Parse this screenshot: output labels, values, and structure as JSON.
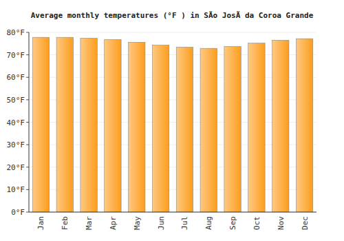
{
  "chart_data": {
    "type": "bar",
    "title": "Average monthly temperatures (°F ) in SÃo JosÃ da Coroa Grande",
    "categories": [
      "Jan",
      "Feb",
      "Mar",
      "Apr",
      "May",
      "Jun",
      "Jul",
      "Aug",
      "Sep",
      "Oct",
      "Nov",
      "Dec"
    ],
    "values": [
      77.8,
      77.8,
      77.4,
      76.8,
      75.6,
      74.3,
      73.4,
      72.9,
      73.7,
      75.2,
      76.5,
      77.2
    ],
    "color": "#fd9d1c",
    "ylim": [
      0,
      80
    ],
    "yticks": [
      {
        "value": 0,
        "label": "0°F"
      },
      {
        "value": 10,
        "label": "10°F"
      },
      {
        "value": 20,
        "label": "20°F"
      },
      {
        "value": 30,
        "label": "30°F"
      },
      {
        "value": 40,
        "label": "40°F"
      },
      {
        "value": 50,
        "label": "50°F"
      },
      {
        "value": 60,
        "label": "60°F"
      },
      {
        "value": 70,
        "label": "70°F"
      },
      {
        "value": 80,
        "label": "80°F"
      }
    ],
    "grid": true
  }
}
